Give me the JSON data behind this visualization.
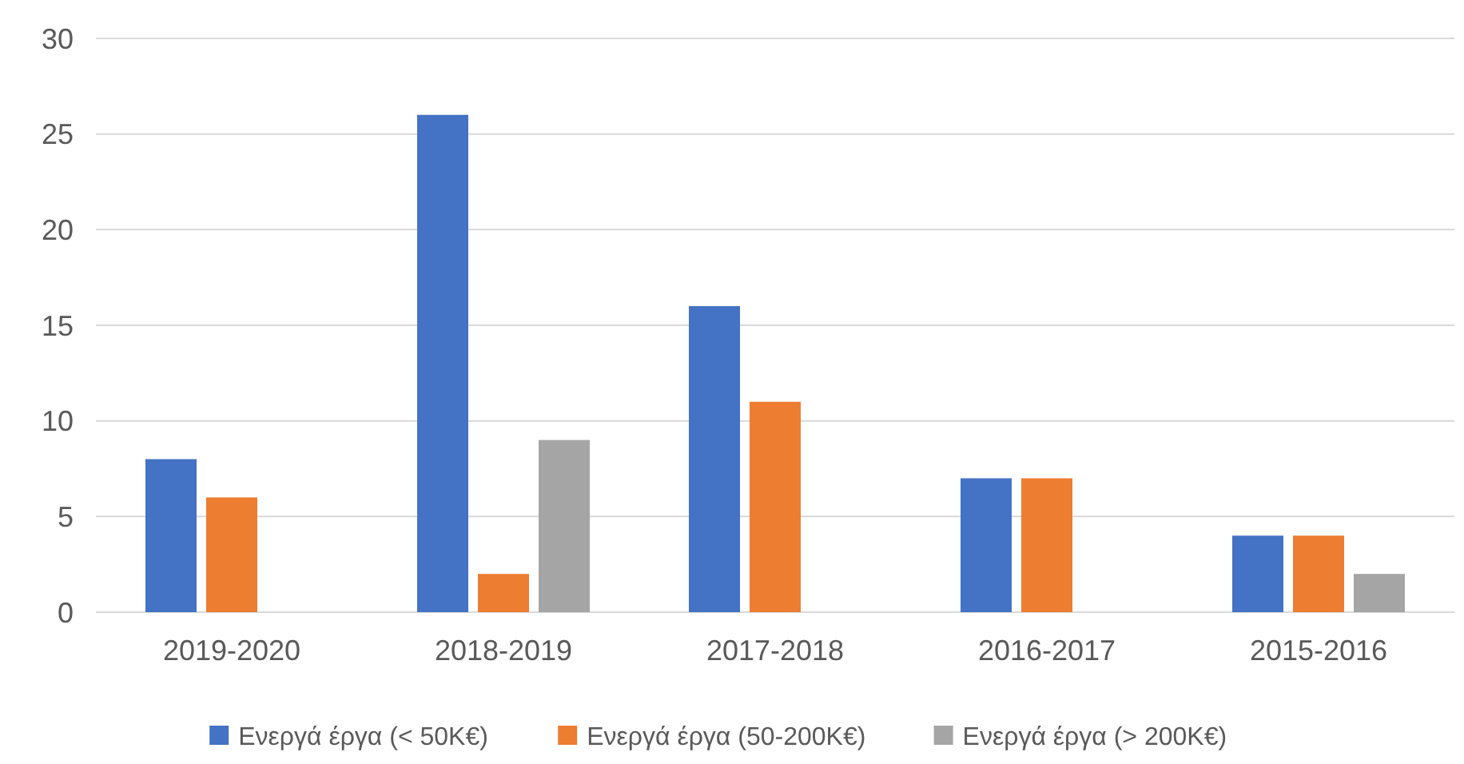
{
  "chart_data": {
    "type": "bar",
    "categories": [
      "2019-2020",
      "2018-2019",
      "2017-2018",
      "2016-2017",
      "2015-2016"
    ],
    "series": [
      {
        "name": "Ενεργά έργα (< 50K€)",
        "color": "#4472c4",
        "values": [
          8,
          26,
          16,
          7,
          4
        ]
      },
      {
        "name": "Ενεργά έργα (50-200K€)",
        "color": "#ed7d31",
        "values": [
          6,
          2,
          11,
          7,
          4
        ]
      },
      {
        "name": "Ενεργά έργα (> 200K€)",
        "color": "#a5a5a5",
        "values": [
          null,
          9,
          null,
          null,
          2
        ]
      }
    ],
    "ylim": [
      0,
      30
    ],
    "yticks": [
      0,
      5,
      10,
      15,
      20,
      25,
      30
    ],
    "grid": "y",
    "legend": "bottom"
  }
}
